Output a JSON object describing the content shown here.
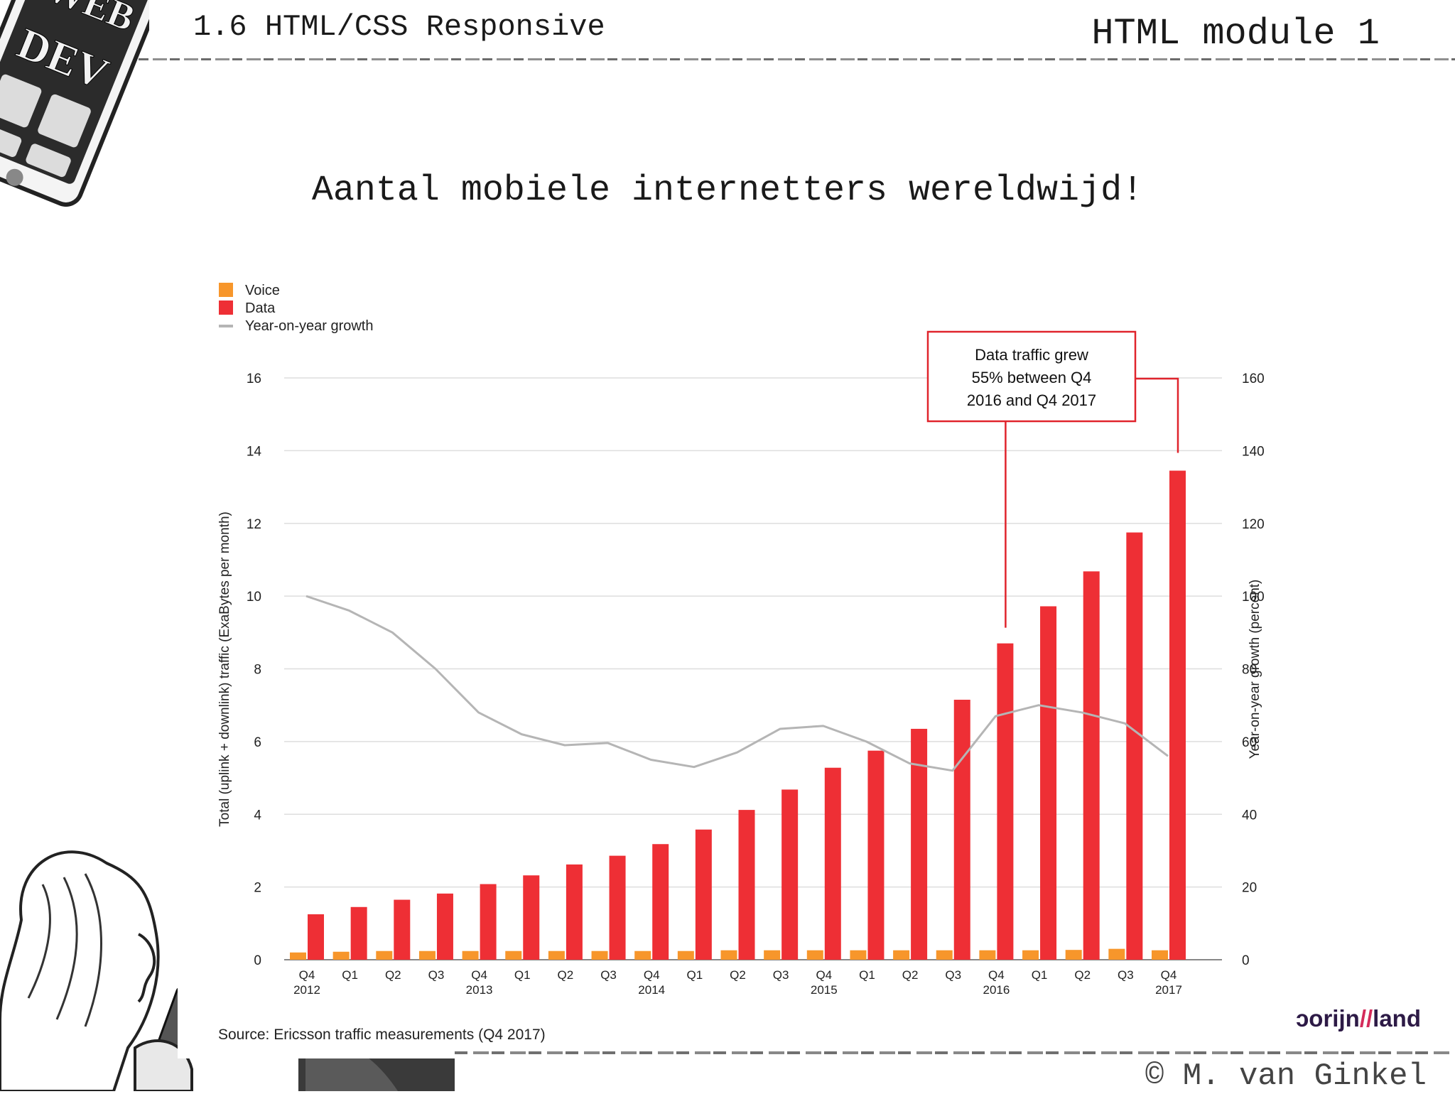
{
  "header": {
    "left": "1.6 HTML/CSS Responsive",
    "right": "HTML module 1"
  },
  "slide_title": "Aantal mobiele internetters wereldwijd!",
  "phone_sticker": {
    "top_text": "WEB",
    "bottom_text": "DEV"
  },
  "footer": {
    "source": "Source: Ericsson traffic measurements (Q4 2017)",
    "logo_left": "ɔorijn",
    "logo_right": "land",
    "copyright": "© M. van Ginkel"
  },
  "colors": {
    "voice": "#f7962b",
    "data": "#ee2f35",
    "growth": "#b5b5b5",
    "callout": "#e0242c"
  },
  "chart_data": {
    "type": "bar",
    "categories": [
      [
        "Q4",
        "2012"
      ],
      [
        "Q1",
        ""
      ],
      [
        "Q2",
        ""
      ],
      [
        "Q3",
        ""
      ],
      [
        "Q4",
        "2013"
      ],
      [
        "Q1",
        ""
      ],
      [
        "Q2",
        ""
      ],
      [
        "Q3",
        ""
      ],
      [
        "Q4",
        "2014"
      ],
      [
        "Q1",
        ""
      ],
      [
        "Q2",
        ""
      ],
      [
        "Q3",
        ""
      ],
      [
        "Q4",
        "2015"
      ],
      [
        "Q1",
        ""
      ],
      [
        "Q2",
        ""
      ],
      [
        "Q3",
        ""
      ],
      [
        "Q4",
        "2016"
      ],
      [
        "Q1",
        ""
      ],
      [
        "Q2",
        ""
      ],
      [
        "Q3",
        ""
      ],
      [
        "Q4",
        "2017"
      ]
    ],
    "series": [
      {
        "name": "Voice",
        "type": "bar",
        "axis": "left",
        "values": [
          0.2,
          0.22,
          0.24,
          0.24,
          0.24,
          0.24,
          0.24,
          0.24,
          0.24,
          0.24,
          0.26,
          0.26,
          0.26,
          0.26,
          0.26,
          0.26,
          0.26,
          0.26,
          0.27,
          0.3,
          0.26
        ]
      },
      {
        "name": "Data",
        "type": "bar",
        "axis": "left",
        "values": [
          1.25,
          1.45,
          1.65,
          1.82,
          2.08,
          2.32,
          2.62,
          2.86,
          3.18,
          3.58,
          4.12,
          4.68,
          5.28,
          5.75,
          6.35,
          7.15,
          8.7,
          9.72,
          10.68,
          11.75,
          13.45
        ]
      },
      {
        "name": "Year-on-year growth",
        "type": "line",
        "axis": "right",
        "values": [
          100,
          96,
          90,
          80,
          68,
          62,
          59,
          59.6,
          55,
          53,
          57,
          63.5,
          64.3,
          60,
          54,
          52,
          67,
          70,
          68,
          65,
          56
        ]
      }
    ],
    "ylabel": "Total (uplink + downlink) traffic (ExaBytes per month)",
    "y2label": "Year-on-year growth (percent)",
    "ylim": [
      0,
      16
    ],
    "y2lim": [
      0,
      160
    ],
    "yticks": [
      "0",
      "2",
      "4",
      "6",
      "8",
      "10",
      "12",
      "14",
      "16"
    ],
    "y2ticks": [
      "0",
      "20",
      "40",
      "60",
      "80",
      "100",
      "120",
      "140",
      "160"
    ],
    "legend_position": "top-left",
    "grid": true,
    "annotation": {
      "lines": [
        "Data traffic grew",
        "55% between Q4",
        "2016 and Q4 2017"
      ],
      "points_to": [
        "Q4 2016",
        "Q4 2017"
      ]
    }
  }
}
